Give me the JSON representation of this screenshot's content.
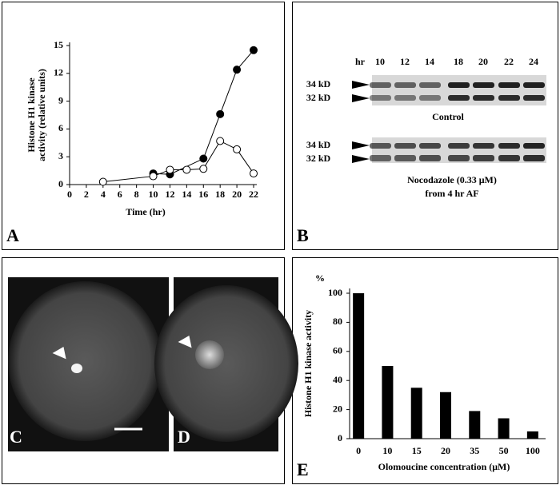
{
  "chart_data": [
    {
      "type": "line",
      "x_label": "Time (hr)",
      "y_label": [
        "Histone H1 kinase",
        "activity (relative units)"
      ],
      "xlim": [
        0,
        22
      ],
      "xticks": [
        0,
        2,
        4,
        6,
        8,
        10,
        12,
        14,
        16,
        18,
        20,
        22
      ],
      "ylim": [
        0,
        15
      ],
      "yticks": [
        0,
        3,
        6,
        9,
        12,
        15
      ],
      "series": [
        {
          "color": "#000000",
          "marker_fill": "#000000",
          "x": [
            10,
            12,
            16,
            18,
            20,
            22
          ],
          "values": [
            1.2,
            1.1,
            2.8,
            7.6,
            12.4,
            14.5
          ]
        },
        {
          "color": "#000000",
          "marker_fill": "#ffffff",
          "x": [
            4,
            10,
            12,
            14,
            16,
            18,
            20,
            22
          ],
          "values": [
            0.3,
            0.9,
            1.6,
            1.6,
            1.7,
            4.7,
            3.8,
            1.2
          ]
        }
      ]
    },
    {
      "type": "bar",
      "x_label": "Olomoucine concentration (μM)",
      "y_label": "Histone H1 kinase activity",
      "y_unit": "%",
      "categories": [
        "0",
        "10",
        "15",
        "20",
        "35",
        "50",
        "100"
      ],
      "values": [
        100,
        50,
        35,
        32,
        19,
        14,
        5
      ],
      "color": "#000000",
      "ylim": [
        0,
        100
      ],
      "yticks": [
        0,
        20,
        40,
        60,
        80,
        100
      ]
    }
  ],
  "blot": {
    "hr": "hr",
    "lanes": [
      "10",
      "12",
      "14",
      "18",
      "20",
      "22",
      "24"
    ],
    "band_top": "34 kD",
    "band_bottom": "32 kD",
    "control": "Control",
    "treatment": [
      "Nocodazole (0.33 μM)",
      "from 4 hr AF"
    ]
  },
  "panel_labels": [
    "A",
    "B",
    "C",
    "D",
    "E"
  ]
}
